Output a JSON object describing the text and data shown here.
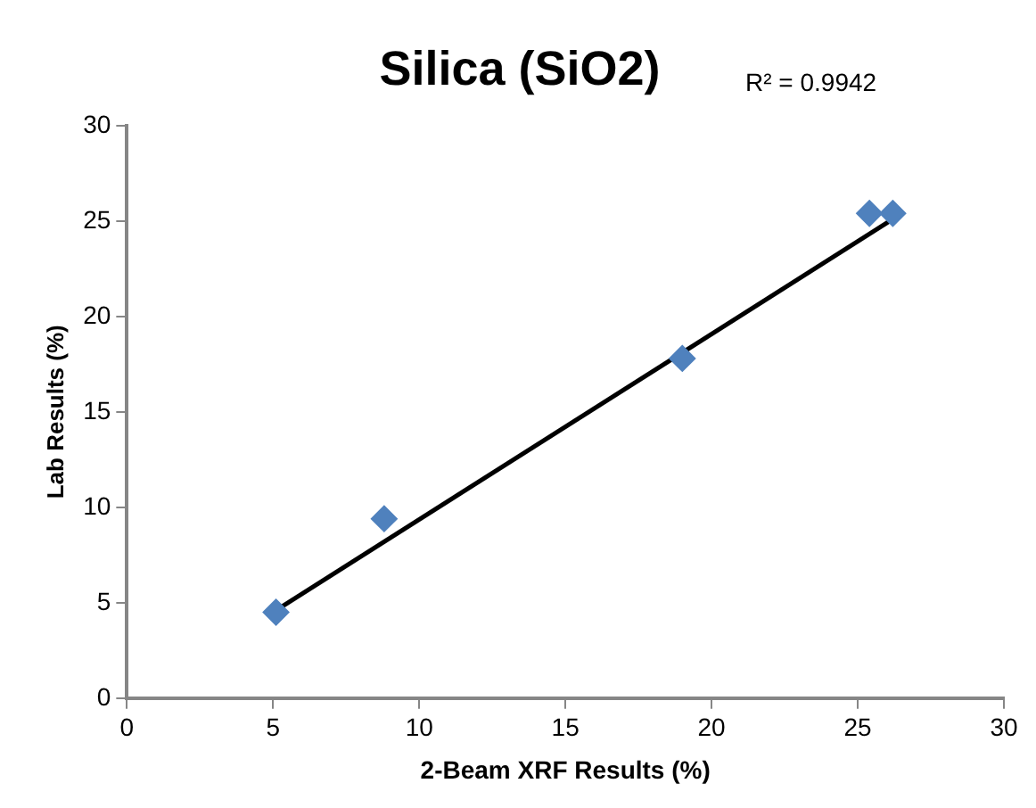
{
  "chart_data": {
    "type": "scatter",
    "title": "Silica (SiO2)",
    "xlabel": "2-Beam XRF Results (%)",
    "ylabel": "Lab Results (%)",
    "annotations": [
      "R² = 0.9942"
    ],
    "series": [
      {
        "type": "scatter",
        "color": "#4f81bd",
        "marker": "diamond",
        "x": [
          5.1,
          8.8,
          19.0,
          25.4,
          26.2
        ],
        "values": [
          4.5,
          9.4,
          17.8,
          25.4,
          25.4
        ]
      },
      {
        "type": "line",
        "color": "#000000",
        "marker": "none",
        "x": [
          5.1,
          26.2
        ],
        "values": [
          4.6,
          25.1
        ]
      }
    ],
    "xlim": [
      0,
      30
    ],
    "xticks": [
      0,
      5,
      10,
      15,
      20,
      25,
      30
    ],
    "ylim": [
      0,
      30
    ],
    "yticks": [
      0,
      5,
      10,
      15,
      20,
      25,
      30
    ],
    "grid": false,
    "legend": false
  }
}
